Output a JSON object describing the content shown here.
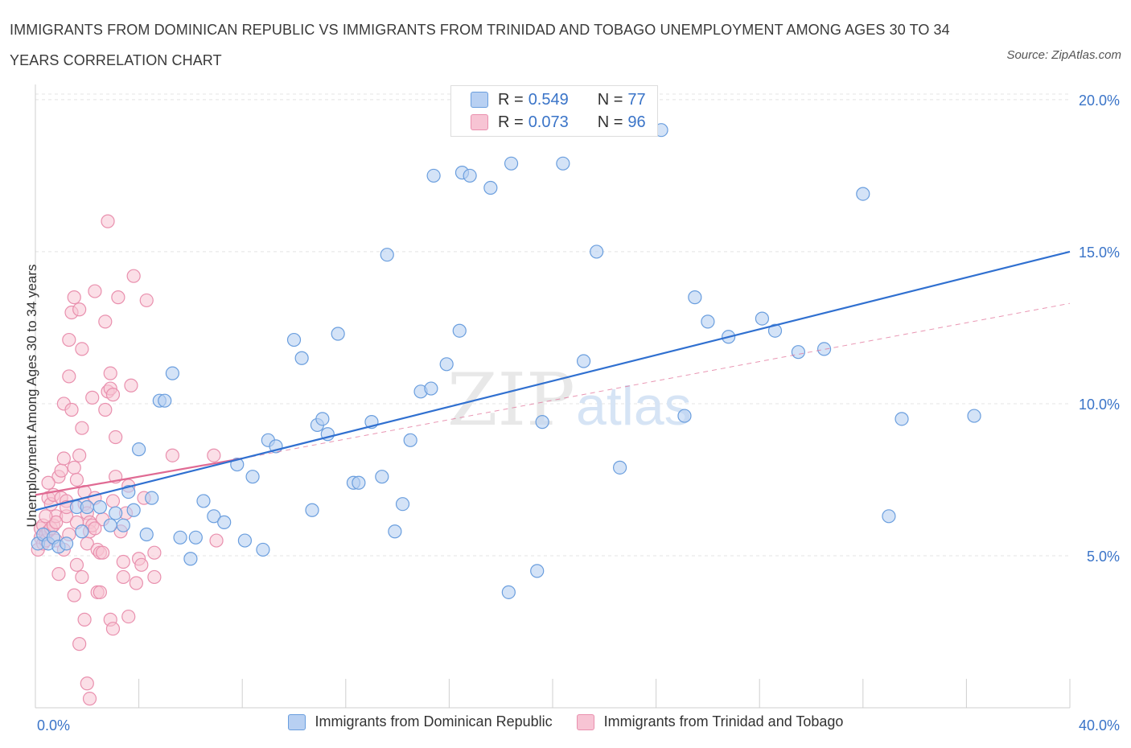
{
  "header": {
    "title": "IMMIGRANTS FROM DOMINICAN REPUBLIC VS IMMIGRANTS FROM TRINIDAD AND TOBAGO UNEMPLOYMENT AMONG AGES 30 TO 34 YEARS CORRELATION CHART",
    "source": "Source: ZipAtlas.com"
  },
  "watermark": {
    "zip": "ZIP",
    "atlas": "atlas"
  },
  "legend_top": {
    "rows": [
      {
        "r_label": "R =",
        "r_value": "0.549",
        "n_label": "N =",
        "n_value": "77"
      },
      {
        "r_label": "R =",
        "r_value": "0.073",
        "n_label": "N =",
        "n_value": "96"
      }
    ]
  },
  "legend_bottom": {
    "items": [
      {
        "label": "Immigrants from Dominican Republic"
      },
      {
        "label": "Immigrants from Trinidad and Tobago"
      }
    ]
  },
  "colors": {
    "blue_fill": "#b8d0f2",
    "blue_stroke": "#6a9ede",
    "blue_line": "#3070d0",
    "pink_fill": "#f7c4d4",
    "pink_stroke": "#e990ae",
    "pink_line": "#e06a93",
    "axis_text": "#3a74c8",
    "grid": "#e4e4e4"
  },
  "chart_data": {
    "type": "scatter",
    "title": "IMMIGRANTS FROM DOMINICAN REPUBLIC VS IMMIGRANTS FROM TRINIDAD AND TOBAGO UNEMPLOYMENT AMONG AGES 30 TO 34 YEARS CORRELATION CHART",
    "xlabel": "",
    "ylabel": "Unemployment Among Ages 30 to 34 years",
    "xlim": [
      0,
      40
    ],
    "ylim": [
      0,
      20.5
    ],
    "x_tick_labels": [
      "0.0%",
      "40.0%"
    ],
    "y_ticks": [
      5,
      10,
      15,
      20
    ],
    "y_tick_labels": [
      "5.0%",
      "10.0%",
      "15.0%",
      "20.0%"
    ],
    "grid": true,
    "series": [
      {
        "name": "Immigrants from Dominican Republic",
        "r": 0.549,
        "n": 77,
        "trend": {
          "x": [
            0,
            40
          ],
          "y": [
            6.5,
            15.0
          ],
          "style": "solid"
        },
        "points": [
          [
            0.1,
            5.4
          ],
          [
            0.3,
            5.7
          ],
          [
            0.5,
            5.4
          ],
          [
            0.7,
            5.6
          ],
          [
            0.9,
            5.3
          ],
          [
            1.2,
            5.4
          ],
          [
            1.6,
            6.6
          ],
          [
            1.8,
            5.8
          ],
          [
            2.0,
            6.6
          ],
          [
            2.5,
            6.6
          ],
          [
            2.9,
            6.0
          ],
          [
            3.1,
            6.4
          ],
          [
            3.4,
            6.0
          ],
          [
            3.6,
            7.1
          ],
          [
            3.8,
            6.5
          ],
          [
            4.0,
            8.5
          ],
          [
            4.3,
            5.7
          ],
          [
            4.5,
            6.9
          ],
          [
            4.8,
            10.1
          ],
          [
            5.0,
            10.1
          ],
          [
            5.3,
            11.0
          ],
          [
            5.6,
            5.6
          ],
          [
            6.0,
            4.9
          ],
          [
            6.2,
            5.6
          ],
          [
            6.5,
            6.8
          ],
          [
            6.9,
            6.3
          ],
          [
            7.3,
            6.1
          ],
          [
            7.8,
            8.0
          ],
          [
            8.1,
            5.5
          ],
          [
            8.4,
            7.6
          ],
          [
            8.8,
            5.2
          ],
          [
            9.0,
            8.8
          ],
          [
            9.3,
            8.6
          ],
          [
            10.0,
            12.1
          ],
          [
            10.3,
            11.5
          ],
          [
            10.7,
            6.5
          ],
          [
            10.9,
            9.3
          ],
          [
            11.1,
            9.5
          ],
          [
            11.3,
            9.0
          ],
          [
            11.7,
            12.3
          ],
          [
            12.3,
            7.4
          ],
          [
            12.5,
            7.4
          ],
          [
            13.0,
            9.4
          ],
          [
            13.4,
            7.6
          ],
          [
            13.6,
            14.9
          ],
          [
            13.9,
            5.8
          ],
          [
            14.2,
            6.7
          ],
          [
            14.5,
            8.8
          ],
          [
            14.9,
            10.4
          ],
          [
            15.3,
            10.5
          ],
          [
            15.4,
            17.5
          ],
          [
            15.9,
            11.3
          ],
          [
            16.4,
            12.4
          ],
          [
            16.5,
            17.6
          ],
          [
            16.8,
            17.5
          ],
          [
            17.6,
            17.1
          ],
          [
            18.4,
            17.9
          ],
          [
            18.3,
            3.8
          ],
          [
            19.4,
            4.5
          ],
          [
            19.6,
            9.4
          ],
          [
            20.4,
            17.9
          ],
          [
            21.2,
            11.4
          ],
          [
            21.7,
            15.0
          ],
          [
            22.6,
            7.9
          ],
          [
            24.2,
            19.0
          ],
          [
            25.1,
            9.6
          ],
          [
            25.5,
            13.5
          ],
          [
            26.0,
            12.7
          ],
          [
            26.8,
            12.2
          ],
          [
            28.1,
            12.8
          ],
          [
            28.6,
            12.4
          ],
          [
            29.5,
            11.7
          ],
          [
            30.5,
            11.8
          ],
          [
            32.0,
            16.9
          ],
          [
            33.0,
            6.3
          ],
          [
            33.5,
            9.5
          ],
          [
            36.3,
            9.6
          ]
        ]
      },
      {
        "name": "Immigrants from Trinidad and Tobago",
        "r": 0.073,
        "n": 96,
        "trend": {
          "x": [
            0,
            8.0
          ],
          "y": [
            7.0,
            8.2
          ],
          "style": "solid"
        },
        "trend_extension": {
          "x": [
            8.0,
            40
          ],
          "y": [
            8.2,
            13.3
          ],
          "style": "dashed"
        },
        "points": [
          [
            0.1,
            5.2
          ],
          [
            0.2,
            5.6
          ],
          [
            0.2,
            5.9
          ],
          [
            0.3,
            5.4
          ],
          [
            0.3,
            6.0
          ],
          [
            0.4,
            5.7
          ],
          [
            0.4,
            5.5
          ],
          [
            0.5,
            6.9
          ],
          [
            0.5,
            5.8
          ],
          [
            0.6,
            6.7
          ],
          [
            0.6,
            5.9
          ],
          [
            0.7,
            6.0
          ],
          [
            0.7,
            7.0
          ],
          [
            0.8,
            6.3
          ],
          [
            0.8,
            5.5
          ],
          [
            0.9,
            7.6
          ],
          [
            0.9,
            4.4
          ],
          [
            1.0,
            6.9
          ],
          [
            1.0,
            7.8
          ],
          [
            1.1,
            8.2
          ],
          [
            1.1,
            10.0
          ],
          [
            1.2,
            6.3
          ],
          [
            1.2,
            6.8
          ],
          [
            1.3,
            12.1
          ],
          [
            1.3,
            10.9
          ],
          [
            1.4,
            13.0
          ],
          [
            1.4,
            9.8
          ],
          [
            1.5,
            13.5
          ],
          [
            1.5,
            7.9
          ],
          [
            1.6,
            7.5
          ],
          [
            1.6,
            4.7
          ],
          [
            1.7,
            13.1
          ],
          [
            1.7,
            8.3
          ],
          [
            1.8,
            11.8
          ],
          [
            1.8,
            9.2
          ],
          [
            1.9,
            6.7
          ],
          [
            1.9,
            7.1
          ],
          [
            2.0,
            5.4
          ],
          [
            2.0,
            6.4
          ],
          [
            2.1,
            6.1
          ],
          [
            2.1,
            5.8
          ],
          [
            2.2,
            6.0
          ],
          [
            2.2,
            10.2
          ],
          [
            2.3,
            13.7
          ],
          [
            2.3,
            6.9
          ],
          [
            2.4,
            5.2
          ],
          [
            2.4,
            3.8
          ],
          [
            2.5,
            5.1
          ],
          [
            2.6,
            6.2
          ],
          [
            2.7,
            12.7
          ],
          [
            2.7,
            9.8
          ],
          [
            2.8,
            10.4
          ],
          [
            2.9,
            11.0
          ],
          [
            2.9,
            10.5
          ],
          [
            3.0,
            10.3
          ],
          [
            3.0,
            6.8
          ],
          [
            3.1,
            7.6
          ],
          [
            3.1,
            8.9
          ],
          [
            3.2,
            13.5
          ],
          [
            3.3,
            5.8
          ],
          [
            3.4,
            4.8
          ],
          [
            3.5,
            6.4
          ],
          [
            3.6,
            7.3
          ],
          [
            3.7,
            10.6
          ],
          [
            3.8,
            14.2
          ],
          [
            3.9,
            4.1
          ],
          [
            4.0,
            4.9
          ],
          [
            4.1,
            4.7
          ],
          [
            4.2,
            6.9
          ],
          [
            4.3,
            13.4
          ],
          [
            4.6,
            5.1
          ],
          [
            4.6,
            4.3
          ],
          [
            5.3,
            8.3
          ],
          [
            6.9,
            8.3
          ],
          [
            7.0,
            5.5
          ],
          [
            1.5,
            3.7
          ],
          [
            1.7,
            2.1
          ],
          [
            1.8,
            4.3
          ],
          [
            1.9,
            2.9
          ],
          [
            2.0,
            0.8
          ],
          [
            2.1,
            0.3
          ],
          [
            2.8,
            16.0
          ],
          [
            2.9,
            2.9
          ],
          [
            3.0,
            2.6
          ],
          [
            3.4,
            4.3
          ],
          [
            3.6,
            3.0
          ],
          [
            2.6,
            5.1
          ],
          [
            1.3,
            5.7
          ],
          [
            0.8,
            6.1
          ],
          [
            1.1,
            5.2
          ],
          [
            2.3,
            5.9
          ],
          [
            0.5,
            7.4
          ],
          [
            1.2,
            6.6
          ],
          [
            1.6,
            6.1
          ],
          [
            2.5,
            3.8
          ],
          [
            0.4,
            6.3
          ]
        ]
      }
    ]
  }
}
